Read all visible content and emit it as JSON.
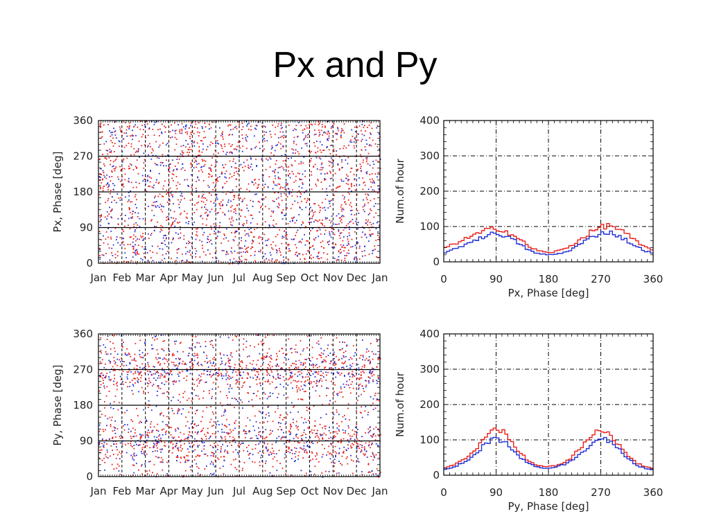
{
  "slide": {
    "title": "Px and Py"
  },
  "colors": {
    "red": "#e8201c",
    "blue": "#1f2fd6",
    "axis": "#000000"
  },
  "chart_data": [
    {
      "id": "scatter_px",
      "type": "scatter",
      "title": "",
      "xlabel": "",
      "ylabel": "Px, Phase [deg]",
      "ylim": [
        0,
        360
      ],
      "yticks": [
        "0",
        "90",
        "180",
        "270",
        "360"
      ],
      "xticks": [
        "Jan",
        "Feb",
        "Mar",
        "Apr",
        "May",
        "Jun",
        "Jul",
        "Aug",
        "Sep",
        "Oct",
        "Nov",
        "Dec",
        "Jan"
      ],
      "grid": true,
      "series": [
        {
          "color": "red",
          "density": "dense, roughly uniform over the year, slightly heavier near 90 and 270 deg"
        },
        {
          "color": "blue",
          "density": "sparser, roughly uniform over the year"
        }
      ]
    },
    {
      "id": "hist_px",
      "type": "line",
      "title": "",
      "xlabel": "Px, Phase [deg]",
      "ylabel": "Num.of hour",
      "xlim": [
        0,
        360
      ],
      "ylim": [
        0,
        400
      ],
      "xticks": [
        "0",
        "90",
        "180",
        "270",
        "360"
      ],
      "yticks": [
        "0",
        "100",
        "200",
        "300",
        "400"
      ],
      "grid": true,
      "x": [
        0,
        15,
        30,
        45,
        60,
        75,
        90,
        105,
        120,
        135,
        150,
        165,
        180,
        195,
        210,
        225,
        240,
        255,
        270,
        285,
        300,
        315,
        330,
        345,
        360
      ],
      "series": [
        {
          "color": "red",
          "values": [
            38,
            48,
            60,
            70,
            80,
            90,
            96,
            88,
            75,
            58,
            40,
            30,
            26,
            30,
            38,
            52,
            70,
            86,
            98,
            104,
            94,
            78,
            58,
            42,
            35
          ]
        },
        {
          "color": "blue",
          "values": [
            25,
            33,
            44,
            56,
            66,
            75,
            82,
            74,
            62,
            45,
            30,
            22,
            20,
            22,
            28,
            40,
            56,
            70,
            82,
            84,
            74,
            60,
            44,
            32,
            25
          ]
        }
      ]
    },
    {
      "id": "scatter_py",
      "type": "scatter",
      "title": "",
      "xlabel": "",
      "ylabel": "Py, Phase [deg]",
      "ylim": [
        0,
        360
      ],
      "yticks": [
        "0",
        "90",
        "180",
        "270",
        "360"
      ],
      "xticks": [
        "Jan",
        "Feb",
        "Mar",
        "Apr",
        "May",
        "Jun",
        "Jul",
        "Aug",
        "Sep",
        "Oct",
        "Nov",
        "Dec",
        "Jan"
      ],
      "grid": true,
      "series": [
        {
          "color": "red",
          "density": "dense, concentrated in bands near 90 and 270 deg"
        },
        {
          "color": "blue",
          "density": "sparser, concentrated in bands near 90 and 270 deg"
        }
      ]
    },
    {
      "id": "hist_py",
      "type": "line",
      "title": "",
      "xlabel": "Py, Phase [deg]",
      "ylabel": "Num.of hour",
      "xlim": [
        0,
        360
      ],
      "ylim": [
        0,
        400
      ],
      "xticks": [
        "0",
        "90",
        "180",
        "270",
        "360"
      ],
      "yticks": [
        "0",
        "100",
        "200",
        "300",
        "400"
      ],
      "grid": true,
      "x": [
        0,
        15,
        30,
        45,
        60,
        75,
        90,
        105,
        120,
        135,
        150,
        165,
        180,
        195,
        210,
        225,
        240,
        255,
        270,
        285,
        300,
        315,
        330,
        345,
        360
      ],
      "series": [
        {
          "color": "red",
          "values": [
            20,
            28,
            40,
            58,
            82,
            110,
            128,
            118,
            88,
            56,
            36,
            26,
            24,
            28,
            38,
            58,
            86,
            112,
            126,
            120,
            90,
            58,
            36,
            24,
            18
          ]
        },
        {
          "color": "blue",
          "values": [
            16,
            22,
            32,
            48,
            70,
            92,
            104,
            96,
            72,
            46,
            30,
            22,
            20,
            24,
            32,
            48,
            70,
            92,
            104,
            98,
            74,
            48,
            30,
            20,
            15
          ]
        }
      ]
    }
  ]
}
